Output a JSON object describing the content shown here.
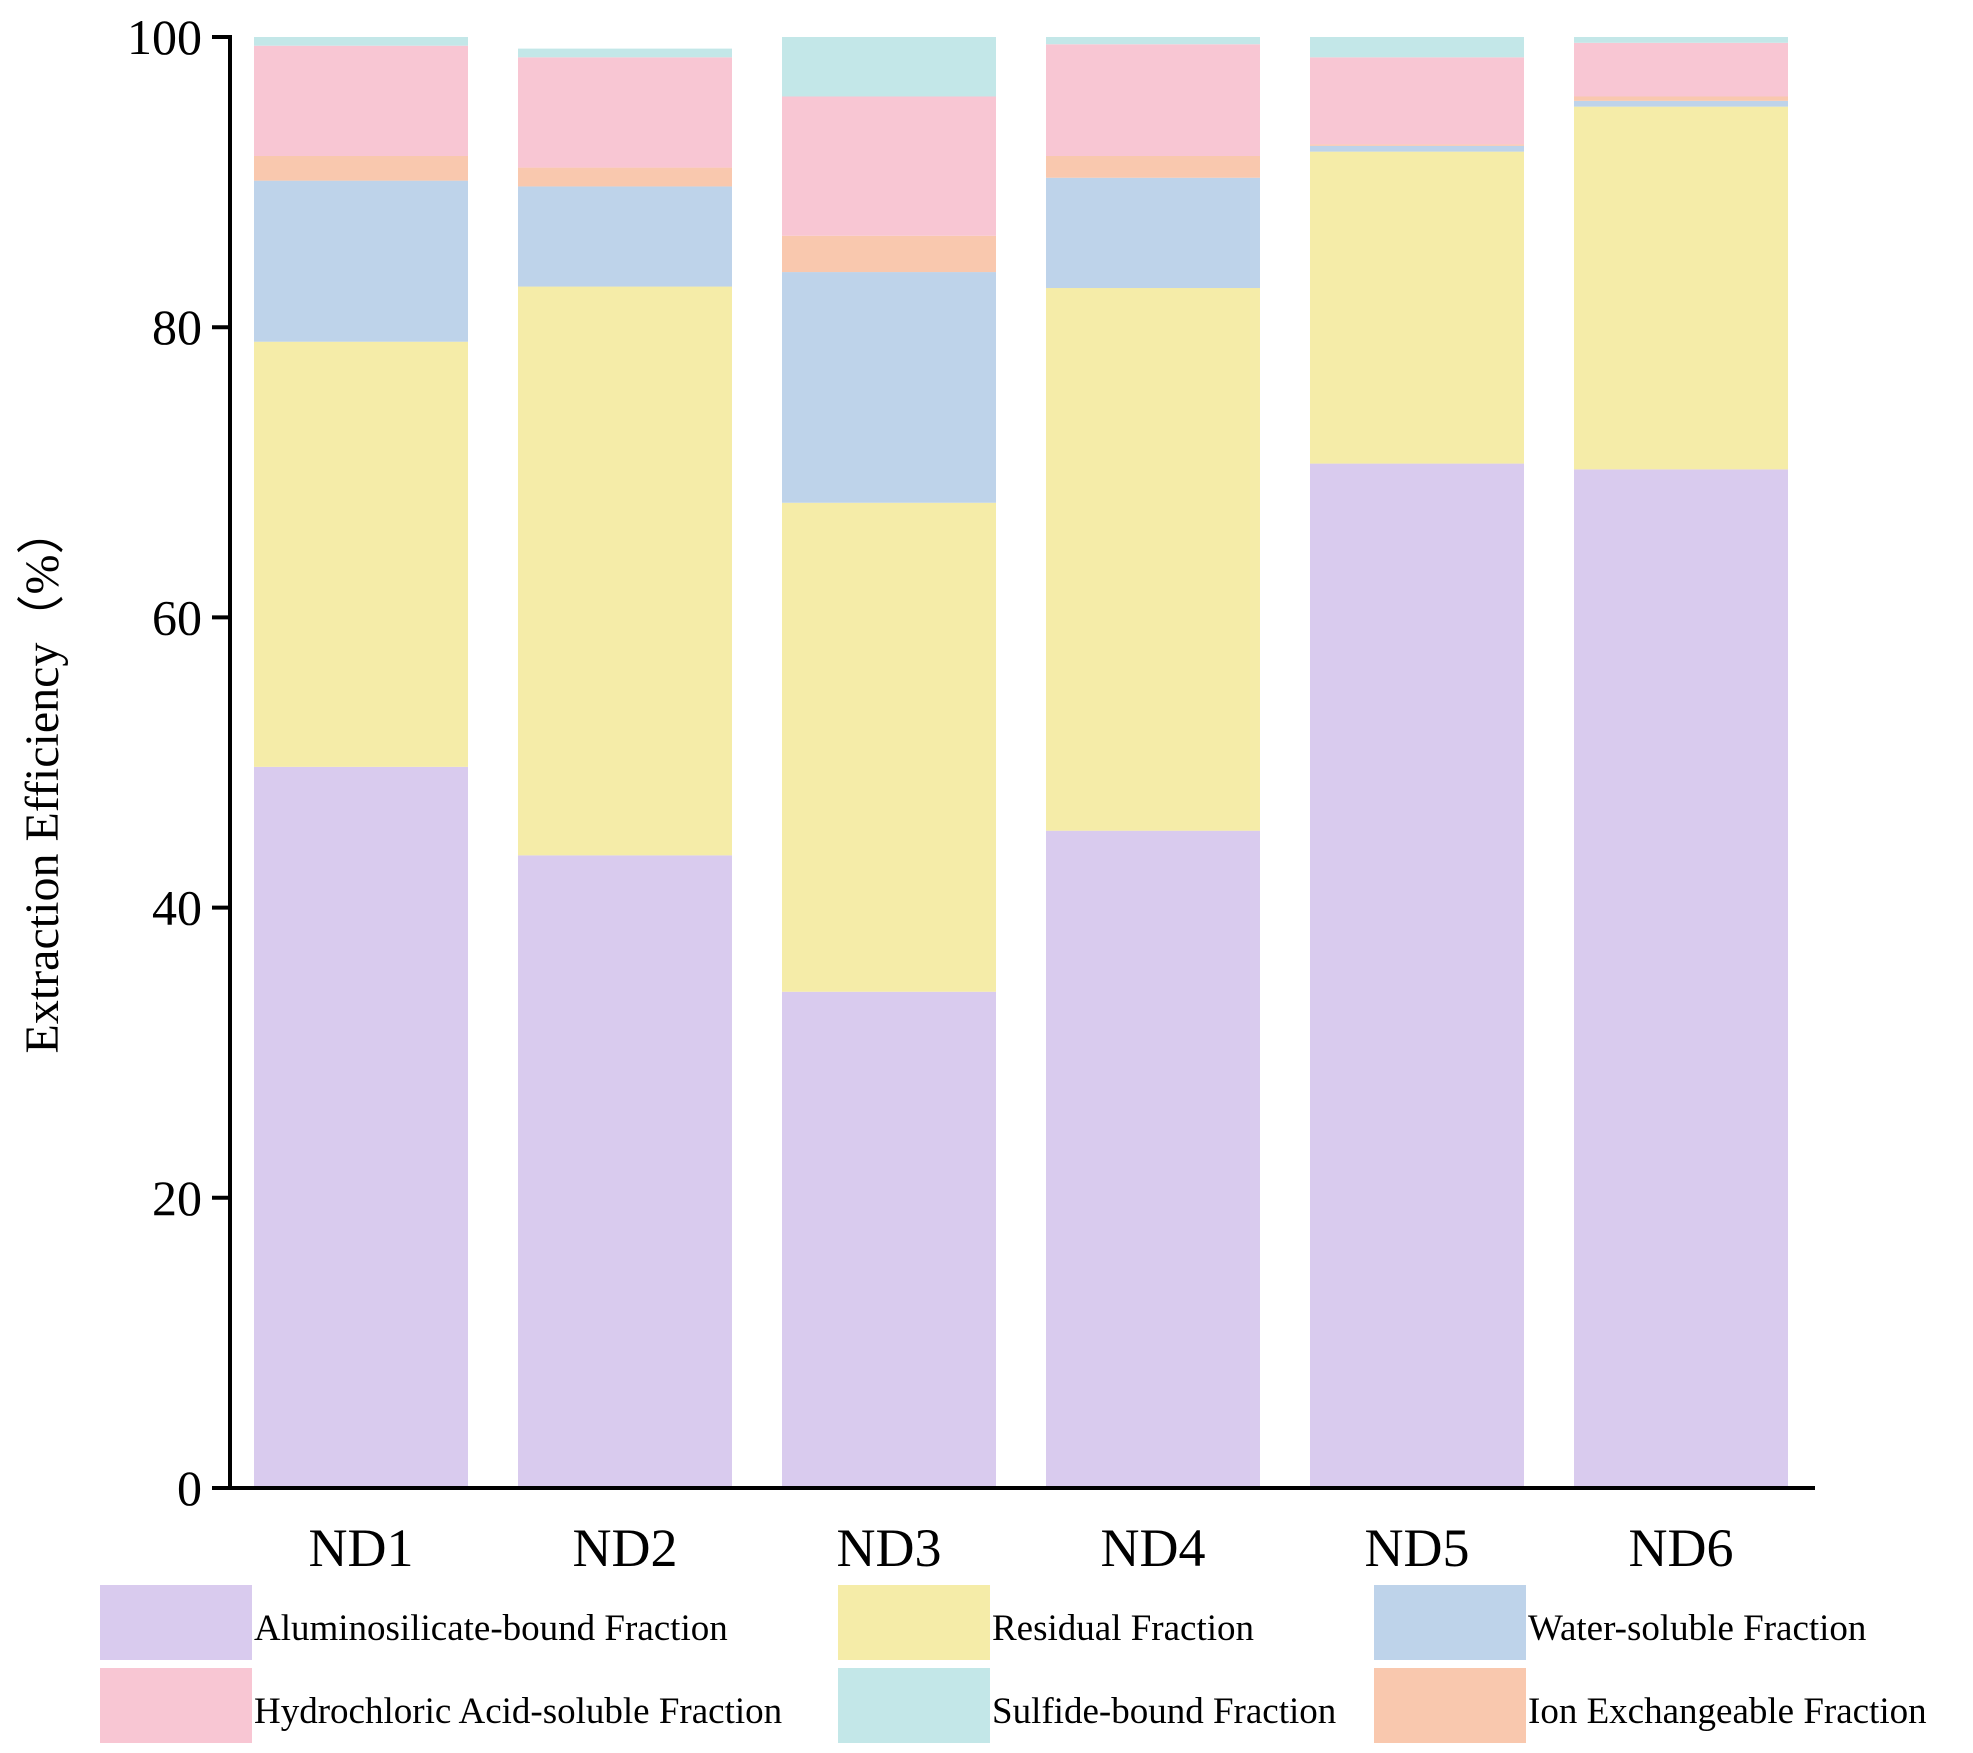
{
  "chart_data": {
    "type": "bar",
    "stacked": true,
    "title": "",
    "xlabel": "",
    "ylabel": "Extraction Efficiency（%）",
    "ylim": [
      0,
      100
    ],
    "yticks": [
      0,
      20,
      40,
      60,
      80,
      100
    ],
    "grid": false,
    "legend_position": "bottom",
    "categories": [
      "ND1",
      "ND2",
      "ND3",
      "ND4",
      "ND5",
      "ND6"
    ],
    "series": [
      {
        "name": "Aluminosilicate-bound Fraction",
        "color": "#d9cbee",
        "values": [
          49.7,
          43.6,
          34.2,
          45.3,
          70.6,
          70.2
        ]
      },
      {
        "name": "Residual Fraction",
        "color": "#f5eca8",
        "values": [
          29.3,
          39.2,
          33.7,
          37.4,
          21.5,
          25.0
        ]
      },
      {
        "name": "Water-soluble Fraction",
        "color": "#bed3ea",
        "values": [
          11.1,
          6.9,
          15.9,
          7.6,
          0.4,
          0.4
        ]
      },
      {
        "name": "Ion Exchangeable Fraction",
        "color": "#f9c8ae",
        "values": [
          1.7,
          1.3,
          2.5,
          1.5,
          0.1,
          0.3
        ]
      },
      {
        "name": "Hydrochloric Acid-soluble Fraction",
        "color": "#f8c6d3",
        "values": [
          7.6,
          7.6,
          9.6,
          7.7,
          6.0,
          3.7
        ]
      },
      {
        "name": "Sulfide-bound Fraction",
        "color": "#c3e7e8",
        "values": [
          0.6,
          0.6,
          4.1,
          0.5,
          1.4,
          0.4
        ]
      }
    ],
    "legend_order": [
      "Aluminosilicate-bound Fraction",
      "Residual Fraction",
      "Water-soluble Fraction",
      "Hydrochloric Acid-soluble Fraction",
      "Sulfide-bound Fraction",
      "Ion Exchangeable Fraction"
    ]
  }
}
